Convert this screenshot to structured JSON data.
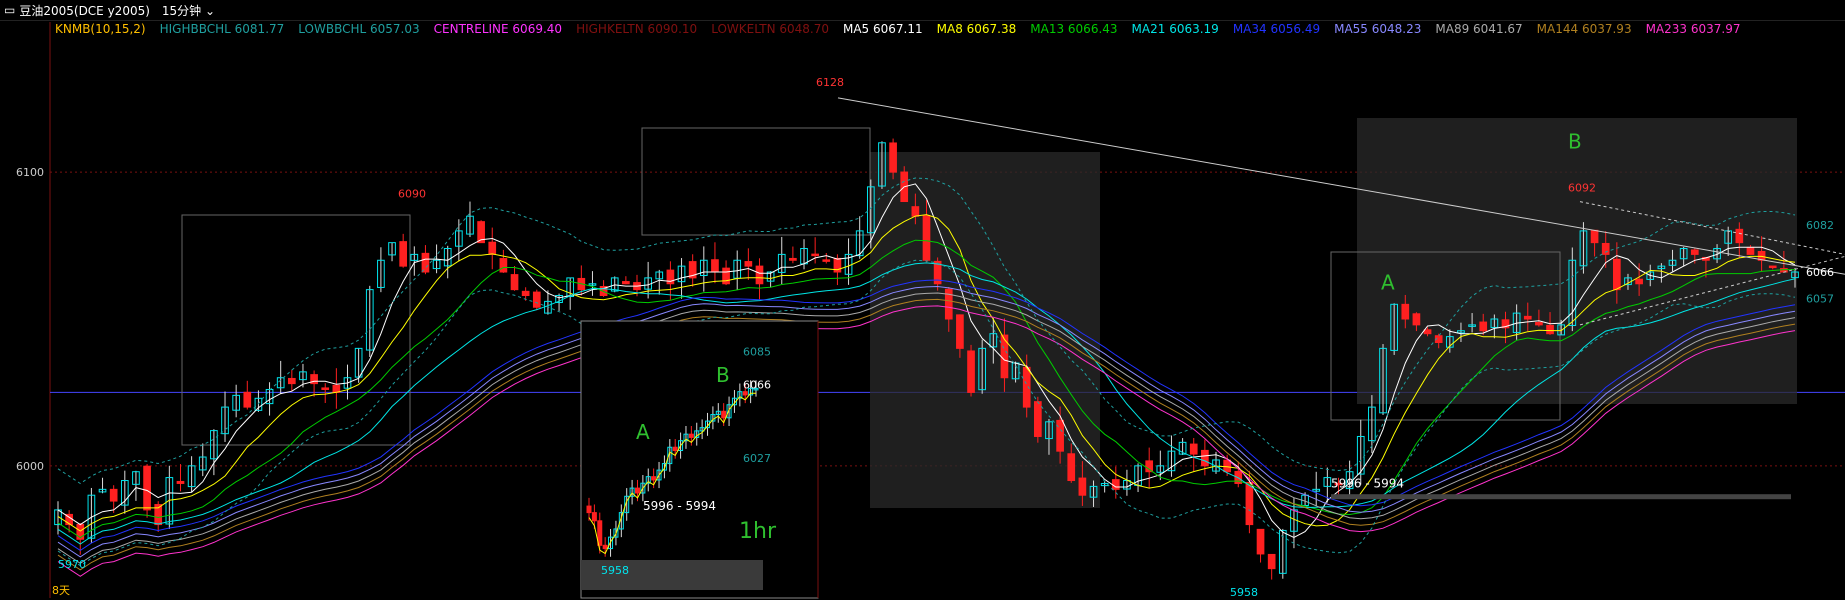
{
  "header": {
    "symbol_title": "豆油2005(DCE y2005)",
    "timeframe": "15分钟"
  },
  "legend": [
    {
      "text": "KNMB(10,15,2)",
      "color": "#ffbf00"
    },
    {
      "text": "HIGHBBCHL 6081.77",
      "color": "#1f9f9f"
    },
    {
      "text": "LOWBBCHL 6057.03",
      "color": "#1f9f9f"
    },
    {
      "text": "CENTRELINE 6069.40",
      "color": "#ff33ff"
    },
    {
      "text": "HIGHKELTN 6090.10",
      "color": "#801010"
    },
    {
      "text": "LOWKELTN 6048.70",
      "color": "#801010"
    },
    {
      "text": "MA5 6067.11",
      "color": "#ffffff"
    },
    {
      "text": "MA8 6067.38",
      "color": "#ffff00"
    },
    {
      "text": "MA13 6066.43",
      "color": "#00cc00"
    },
    {
      "text": "MA21 6063.19",
      "color": "#00e5e5"
    },
    {
      "text": "MA34 6056.49",
      "color": "#2233ff"
    },
    {
      "text": "MA55 6048.23",
      "color": "#8888ff"
    },
    {
      "text": "MA89 6041.67",
      "color": "#aaaaaa"
    },
    {
      "text": "MA144 6037.93",
      "color": "#b08020"
    },
    {
      "text": "MA233 6037.97",
      "color": "#ff33cc"
    }
  ],
  "colors": {
    "bull": "#00e5ee",
    "bear": "#ff2020",
    "bg": "#000000",
    "grid": "#7a1010",
    "hline": "#4444ff"
  },
  "chart_data": {
    "type": "candlestick",
    "price_axis_ticks": [
      6100,
      6000
    ],
    "ylim": [
      5955,
      6145
    ],
    "grid": "dotted horizontal at price ticks",
    "annotations": {
      "high_labels": [
        "6128",
        "6090",
        "6092"
      ],
      "low_labels": [
        "5958",
        "5970"
      ],
      "range_label": "5996 - 5994",
      "pattern_labels": [
        "A",
        "B"
      ],
      "right_levels": [
        "6082",
        "6066",
        "6057"
      ],
      "horizontal_line": 6025,
      "days_label": "8天"
    },
    "closes": [
      5985,
      5980,
      5975,
      5990,
      5992,
      5988,
      5995,
      5998,
      5985,
      5980,
      5996,
      5994,
      6000,
      6003,
      6012,
      6020,
      6024,
      6020,
      6023,
      6026,
      6030,
      6028,
      6032,
      6028,
      6026,
      6025,
      6030,
      6040,
      6060,
      6070,
      6076,
      6068,
      6072,
      6066,
      6070,
      6074,
      6080,
      6085,
      6076,
      6072,
      6066,
      6060,
      6058,
      6054,
      6056,
      6058,
      6064,
      6060,
      6062,
      6058,
      6064,
      6062,
      6060,
      6064,
      6066,
      6062,
      6068,
      6064,
      6070,
      6066,
      6062,
      6070,
      6068,
      6062,
      6066,
      6072,
      6070,
      6074,
      6072,
      6070,
      6066,
      6072,
      6080,
      6095,
      6110,
      6100,
      6090,
      6085,
      6070,
      6062,
      6050,
      6040,
      6025,
      6040,
      6045,
      6030,
      6035,
      6020,
      6010,
      6015,
      6005,
      5995,
      5990,
      5993,
      5994,
      5992,
      5995,
      6000,
      5998,
      6000,
      6005,
      6008,
      6004,
      6000,
      6002,
      5998,
      5994,
      5980,
      5970,
      5965,
      5978,
      5985,
      5990,
      5992,
      5996,
      5994,
      5998,
      6010,
      6020,
      6040,
      6055,
      6050,
      6048,
      6045,
      6042,
      6044,
      6046,
      6048,
      6046,
      6050,
      6047,
      6052,
      6050,
      6048,
      6045,
      6048,
      6070,
      6080,
      6076,
      6072,
      6060,
      6064,
      6062,
      6066,
      6068,
      6070,
      6074,
      6072,
      6070,
      6074,
      6080,
      6076,
      6072,
      6070,
      6068,
      6066,
      6066
    ],
    "moving_averages": [
      "MA5",
      "MA8",
      "MA13",
      "MA21",
      "MA34",
      "MA55",
      "MA89",
      "MA144",
      "MA233"
    ],
    "inset": {
      "label": "1hr",
      "pattern_labels": [
        "A",
        "B"
      ],
      "levels": [
        "6085",
        "6066",
        "6027"
      ],
      "range_label": "5996 - 5994",
      "low_label": "5958",
      "closes": [
        5990,
        5985,
        5970,
        5968,
        5975,
        5980,
        5990,
        6000,
        6005,
        6002,
        6008,
        6012,
        6010,
        6016,
        6020,
        6030,
        6028,
        6034,
        6038,
        6036,
        6040,
        6042,
        6046,
        6050,
        6052,
        6048,
        6056,
        6060,
        6064,
        6062,
        6066,
        6066
      ]
    }
  }
}
